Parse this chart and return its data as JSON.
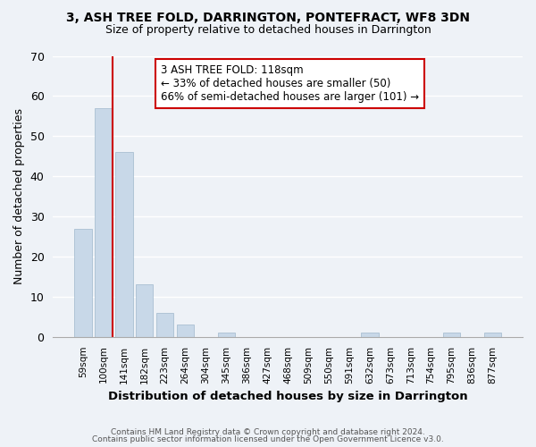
{
  "title": "3, ASH TREE FOLD, DARRINGTON, PONTEFRACT, WF8 3DN",
  "subtitle": "Size of property relative to detached houses in Darrington",
  "xlabel": "Distribution of detached houses by size in Darrington",
  "ylabel": "Number of detached properties",
  "categories": [
    "59sqm",
    "100sqm",
    "141sqm",
    "182sqm",
    "223sqm",
    "264sqm",
    "304sqm",
    "345sqm",
    "386sqm",
    "427sqm",
    "468sqm",
    "509sqm",
    "550sqm",
    "591sqm",
    "632sqm",
    "673sqm",
    "713sqm",
    "754sqm",
    "795sqm",
    "836sqm",
    "877sqm"
  ],
  "values": [
    27,
    57,
    46,
    13,
    6,
    3,
    0,
    1,
    0,
    0,
    0,
    0,
    0,
    0,
    1,
    0,
    0,
    0,
    1,
    0,
    1
  ],
  "bar_color": "#c8d8e8",
  "bar_edge_color": "#a0b8cc",
  "vline_color": "#cc0000",
  "ylim": [
    0,
    70
  ],
  "yticks": [
    0,
    10,
    20,
    30,
    40,
    50,
    60,
    70
  ],
  "annotation_title": "3 ASH TREE FOLD: 118sqm",
  "annotation_line1": "← 33% of detached houses are smaller (50)",
  "annotation_line2": "66% of semi-detached houses are larger (101) →",
  "annotation_box_color": "#ffffff",
  "annotation_box_edge": "#cc0000",
  "footer_line1": "Contains HM Land Registry data © Crown copyright and database right 2024.",
  "footer_line2": "Contains public sector information licensed under the Open Government Licence v3.0.",
  "background_color": "#eef2f7",
  "plot_background": "#eef2f7"
}
